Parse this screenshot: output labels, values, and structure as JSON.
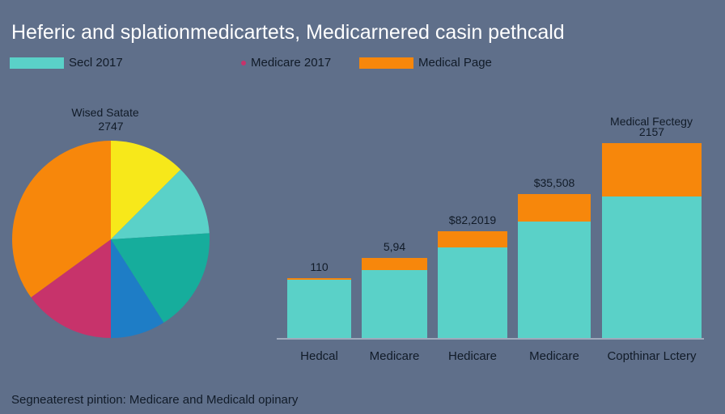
{
  "title": "Heferic and splationmedicartets, Medicarnered casin pethcald",
  "footer": "Segneaterest pintion: Medicare and Medicald opinary",
  "legend": [
    {
      "label": "Secl 2017",
      "color": "#5ad1c8",
      "shape": "rect"
    },
    {
      "label": "Medicare 2017",
      "color": "#c7336b",
      "shape": "dot"
    },
    {
      "label": "Medical Page",
      "color": "#f7870b",
      "shape": "rect"
    }
  ],
  "chart_data": [
    {
      "type": "pie",
      "label_title": "Wised Satate",
      "label_value": "2747",
      "slices": [
        {
          "value": 12.5,
          "color": "#f7e81a"
        },
        {
          "value": 11.5,
          "color": "#5ad1c8"
        },
        {
          "value": 17,
          "color": "#16ad9c"
        },
        {
          "value": 9,
          "color": "#1e7dc6"
        },
        {
          "value": 15,
          "color": "#c7336b"
        },
        {
          "value": 35,
          "color": "#f7870b"
        }
      ]
    },
    {
      "type": "bar",
      "stacked": true,
      "categories": [
        "Hedcal",
        "Medicare",
        "Hedicare",
        "Medicare",
        "Copthinar Lctery"
      ],
      "series": [
        {
          "color": "#5ad1c8",
          "values": [
            72,
            84,
            112,
            144,
            175
          ]
        },
        {
          "color": "#f7870b",
          "values": [
            2,
            15,
            20,
            34,
            66
          ]
        }
      ],
      "data_labels": [
        "110",
        "5,94",
        "$82,2019",
        "$35,508",
        "2157"
      ],
      "top_note": "Medical Fectegy",
      "ylim": [
        0,
        250
      ]
    }
  ]
}
